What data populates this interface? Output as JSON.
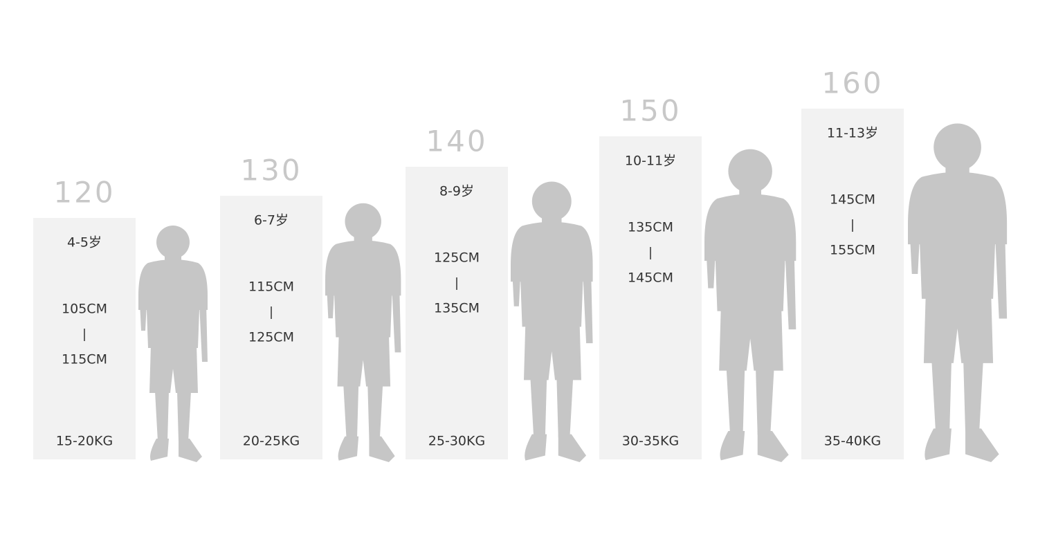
{
  "sizes": [
    {
      "size": "120",
      "age": "4-5岁",
      "height_min": "105CM",
      "height_max": "115CM",
      "weight": "15-20KG"
    },
    {
      "size": "130",
      "age": "6-7岁",
      "height_min": "115CM",
      "height_max": "125CM",
      "weight": "20-25KG"
    },
    {
      "size": "140",
      "age": "8-9岁",
      "height_min": "125CM",
      "height_max": "135CM",
      "weight": "25-30KG"
    },
    {
      "size": "150",
      "age": "10-11岁",
      "height_min": "135CM",
      "height_max": "145CM",
      "weight": "30-35KG"
    },
    {
      "size": "160",
      "age": "11-13岁",
      "height_min": "145CM",
      "height_max": "155CM",
      "weight": "35-40KG"
    }
  ]
}
